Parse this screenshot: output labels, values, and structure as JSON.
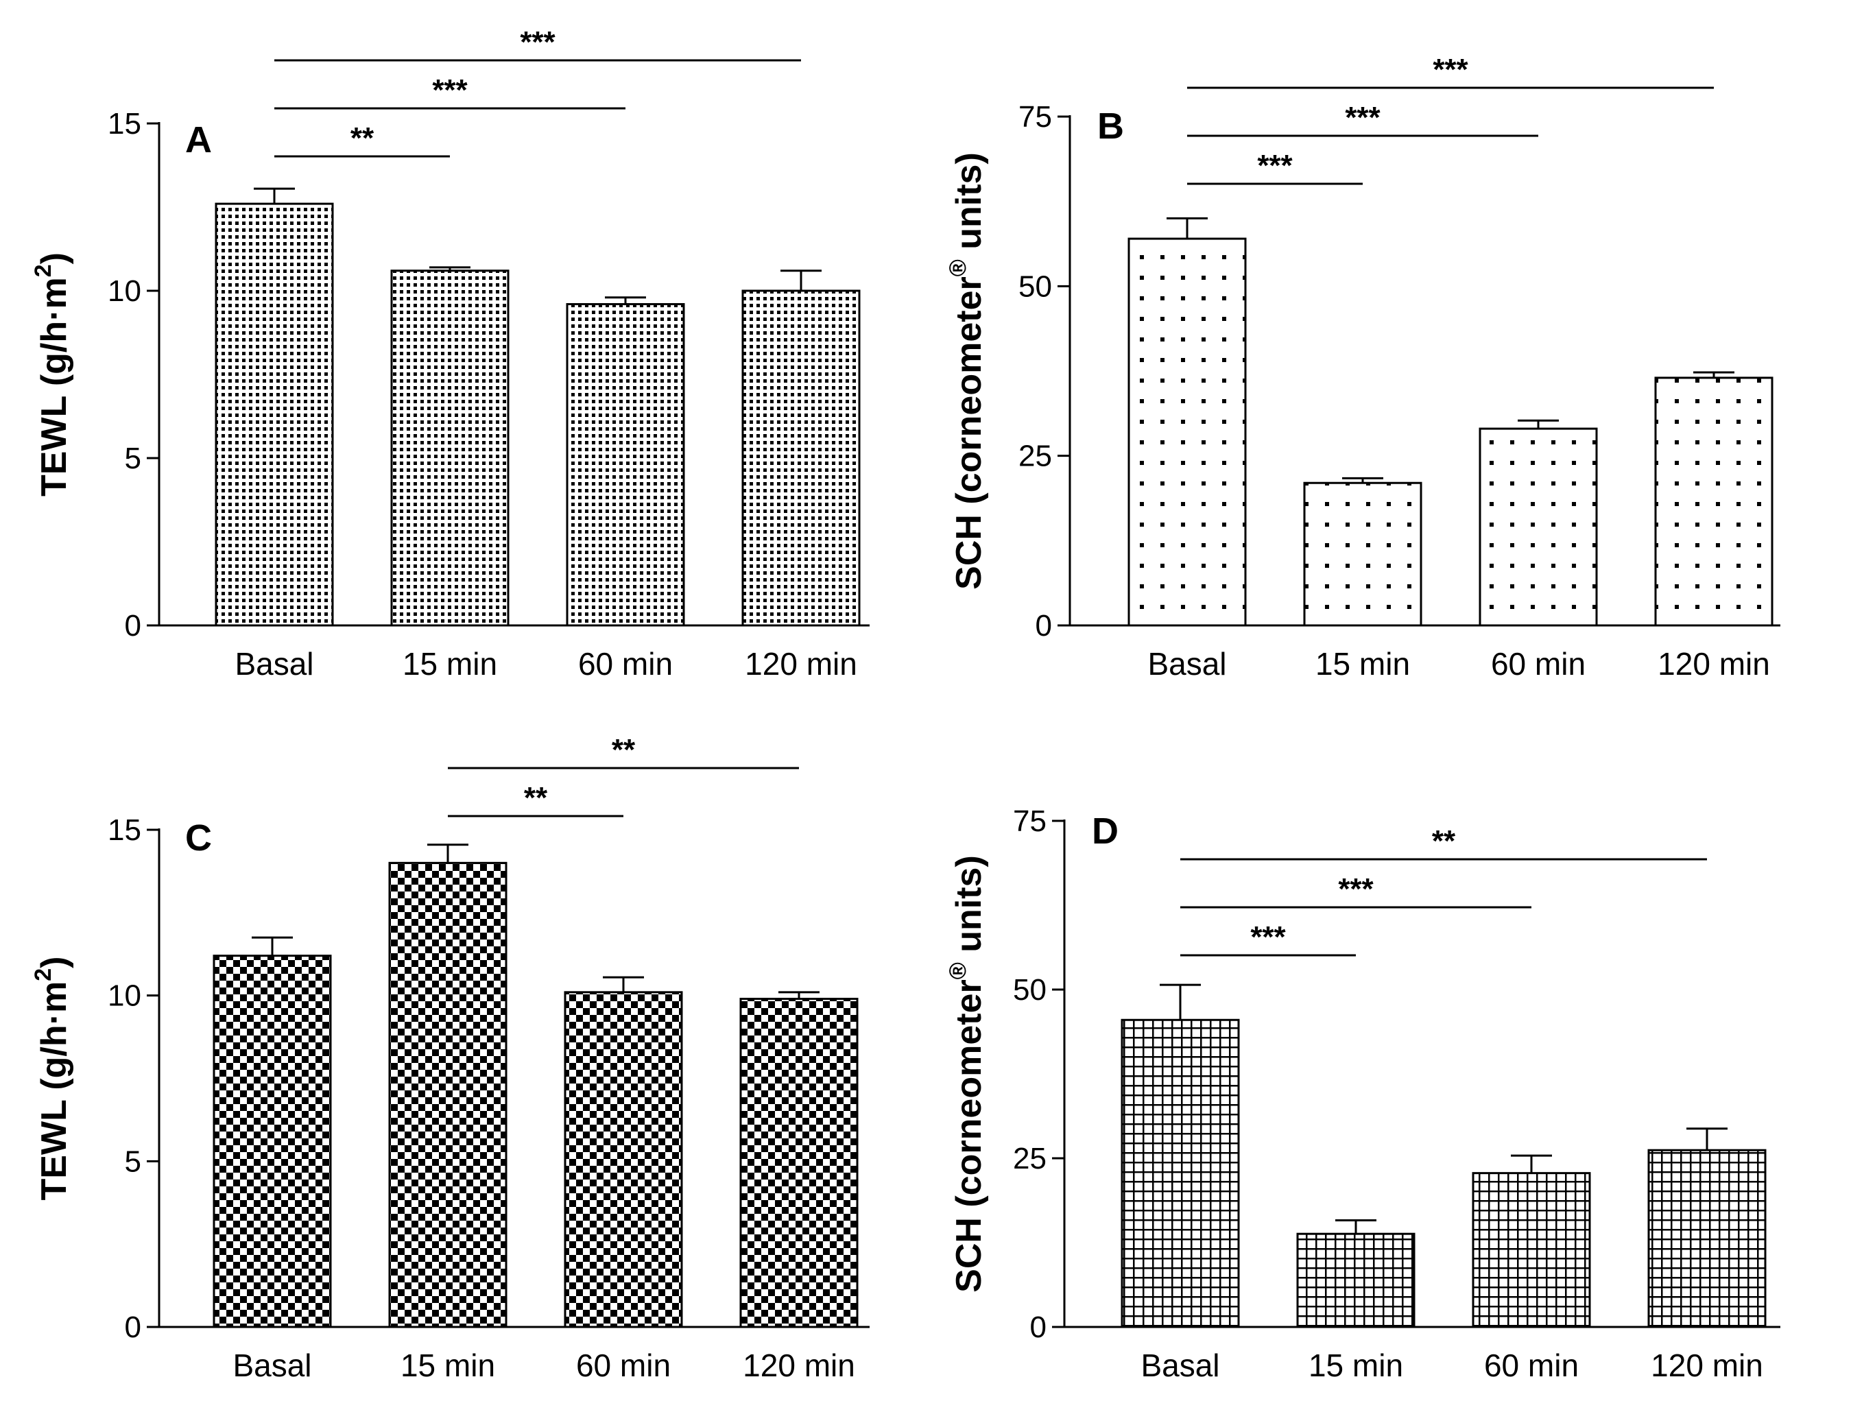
{
  "chart_data": [
    {
      "type": "bar",
      "panel": "A",
      "categories": [
        "Basal",
        "15 min",
        "60 min",
        "120 min"
      ],
      "values": [
        12.6,
        10.6,
        9.6,
        10.0
      ],
      "errors": [
        0.45,
        0.1,
        0.2,
        0.6
      ],
      "ylabel": "TEWL (g/h·m",
      "ylabel_sup": "2",
      "ylabel_end": ")",
      "ylim": [
        0,
        15
      ],
      "yticks": [
        "0",
        "5",
        "10",
        "15"
      ],
      "pattern": "fine-dots",
      "significance": [
        {
          "from": 0,
          "to": 1,
          "label": "**"
        },
        {
          "from": 0,
          "to": 2,
          "label": "***"
        },
        {
          "from": 0,
          "to": 3,
          "label": "***"
        }
      ]
    },
    {
      "type": "bar",
      "panel": "B",
      "categories": [
        "Basal",
        "15 min",
        "60 min",
        "120 min"
      ],
      "values": [
        57,
        21,
        29,
        36.5
      ],
      "errors": [
        3,
        0.7,
        1.2,
        0.8
      ],
      "ylabel": "SCH (corneometer",
      "ylabel_sup": "®",
      "ylabel_end": " units)",
      "ylim": [
        0,
        75
      ],
      "yticks": [
        "0",
        "25",
        "50",
        "75"
      ],
      "pattern": "sparse-dots",
      "significance": [
        {
          "from": 0,
          "to": 1,
          "label": "***"
        },
        {
          "from": 0,
          "to": 2,
          "label": "***"
        },
        {
          "from": 0,
          "to": 3,
          "label": "***"
        }
      ]
    },
    {
      "type": "bar",
      "panel": "C",
      "categories": [
        "Basal",
        "15 min",
        "60 min",
        "120 min"
      ],
      "values": [
        11.2,
        14.0,
        10.1,
        9.9
      ],
      "errors": [
        0.55,
        0.55,
        0.45,
        0.2
      ],
      "ylabel": "TEWL (g/h·m",
      "ylabel_sup": "2",
      "ylabel_end": ")",
      "ylim": [
        0,
        15
      ],
      "yticks": [
        "0",
        "5",
        "10",
        "15"
      ],
      "pattern": "checker",
      "significance": [
        {
          "from": 1,
          "to": 2,
          "label": "**"
        },
        {
          "from": 1,
          "to": 3,
          "label": "**"
        }
      ]
    },
    {
      "type": "bar",
      "panel": "D",
      "categories": [
        "Basal",
        "15 min",
        "60 min",
        "120 min"
      ],
      "values": [
        45.5,
        13.8,
        22.8,
        26.2
      ],
      "errors": [
        5.2,
        2.0,
        2.6,
        3.2
      ],
      "ylabel": "SCH (corneometer",
      "ylabel_sup": "®",
      "ylabel_end": " units)",
      "ylim": [
        0,
        75
      ],
      "yticks": [
        "0",
        "25",
        "50",
        "75"
      ],
      "pattern": "grid",
      "significance": [
        {
          "from": 0,
          "to": 1,
          "label": "***"
        },
        {
          "from": 0,
          "to": 2,
          "label": "***"
        },
        {
          "from": 0,
          "to": 3,
          "label": "**"
        }
      ]
    }
  ]
}
